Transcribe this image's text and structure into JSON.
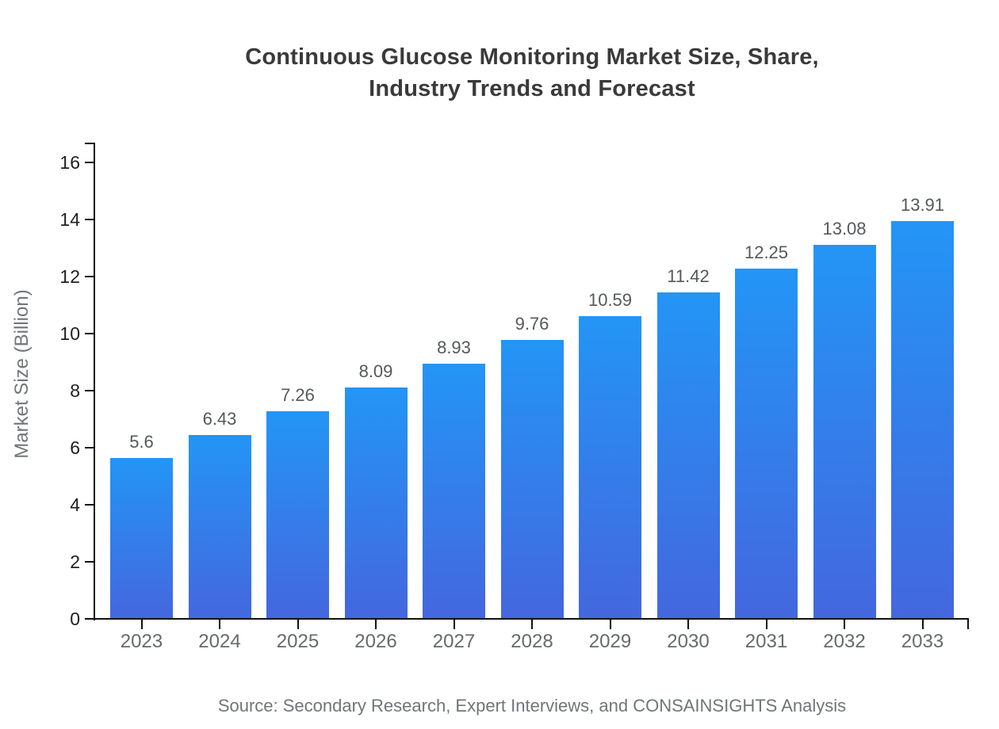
{
  "chart_data": {
    "type": "bar",
    "title": "Continuous Glucose Monitoring Market Size, Share, Industry Trends and Forecast",
    "title_lines": [
      "Continuous Glucose Monitoring Market Size, Share,",
      "Industry Trends and Forecast"
    ],
    "ylabel": "Market Size (Billion)",
    "xlabel": "",
    "categories": [
      "2023",
      "2024",
      "2025",
      "2026",
      "2027",
      "2028",
      "2029",
      "2030",
      "2031",
      "2032",
      "2033"
    ],
    "values": [
      5.6,
      6.43,
      7.26,
      8.09,
      8.93,
      9.76,
      10.59,
      11.42,
      12.25,
      13.08,
      13.91
    ],
    "value_labels": [
      "5.6",
      "6.43",
      "7.26",
      "8.09",
      "8.93",
      "9.76",
      "10.59",
      "11.42",
      "12.25",
      "13.08",
      "13.91"
    ],
    "ylim": [
      0,
      16
    ],
    "yticks": [
      0,
      2,
      4,
      6,
      8,
      10,
      12,
      14,
      16
    ],
    "grid": false,
    "legend": "none",
    "source": "Source: Secondary Research, Expert Interviews, and CONSAINSIGHTS Analysis",
    "colors": {
      "bar_gradient_top": "#2395F6",
      "bar_gradient_bottom": "#4467DE",
      "axis": "#111111",
      "title": "#3a3a3a",
      "ytick_label": "#1f1f1f",
      "xtick_label": "#66696e",
      "value_label": "#55585c",
      "muted_text": "#70757a"
    }
  }
}
